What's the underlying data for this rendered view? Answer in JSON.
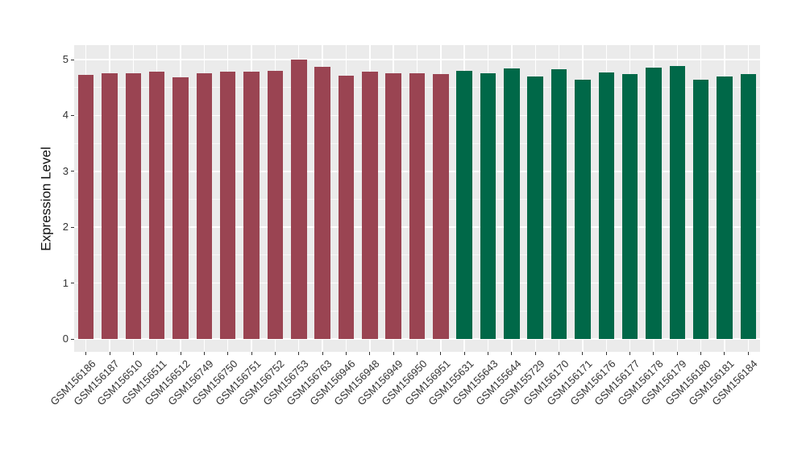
{
  "chart_data": {
    "type": "bar",
    "title": "",
    "xlabel": "",
    "ylabel": "Expression Level",
    "ylim": [
      -0.25,
      5.26
    ],
    "yticks": [
      0,
      1,
      2,
      3,
      4,
      5
    ],
    "minor_yticks": [
      0.5,
      1.5,
      2.5,
      3.5,
      4.5
    ],
    "grid": true,
    "legend_position": "none",
    "plot_bg_color": "#EBEBEB",
    "grid_color": "#FFFFFF",
    "tick_color": "#333333",
    "group_colors": {
      "group1": "#9A4452",
      "group2": "#006848"
    },
    "bars": [
      {
        "label": "GSM156186",
        "value": 4.72,
        "group": "group1"
      },
      {
        "label": "GSM156187",
        "value": 4.75,
        "group": "group1"
      },
      {
        "label": "GSM156510",
        "value": 4.75,
        "group": "group1"
      },
      {
        "label": "GSM156511",
        "value": 4.78,
        "group": "group1"
      },
      {
        "label": "GSM156512",
        "value": 4.69,
        "group": "group1"
      },
      {
        "label": "GSM156749",
        "value": 4.76,
        "group": "group1"
      },
      {
        "label": "GSM156750",
        "value": 4.79,
        "group": "group1"
      },
      {
        "label": "GSM156751",
        "value": 4.79,
        "group": "group1"
      },
      {
        "label": "GSM156752",
        "value": 4.8,
        "group": "group1"
      },
      {
        "label": "GSM156753",
        "value": 5.0,
        "group": "group1"
      },
      {
        "label": "GSM156763",
        "value": 4.87,
        "group": "group1"
      },
      {
        "label": "GSM156946",
        "value": 4.71,
        "group": "group1"
      },
      {
        "label": "GSM156948",
        "value": 4.78,
        "group": "group1"
      },
      {
        "label": "GSM156949",
        "value": 4.75,
        "group": "group1"
      },
      {
        "label": "GSM156950",
        "value": 4.76,
        "group": "group1"
      },
      {
        "label": "GSM156951",
        "value": 4.74,
        "group": "group1"
      },
      {
        "label": "GSM155631",
        "value": 4.8,
        "group": "group2"
      },
      {
        "label": "GSM155643",
        "value": 4.75,
        "group": "group2"
      },
      {
        "label": "GSM155644",
        "value": 4.84,
        "group": "group2"
      },
      {
        "label": "GSM155729",
        "value": 4.7,
        "group": "group2"
      },
      {
        "label": "GSM156170",
        "value": 4.82,
        "group": "group2"
      },
      {
        "label": "GSM156171",
        "value": 4.64,
        "group": "group2"
      },
      {
        "label": "GSM156176",
        "value": 4.77,
        "group": "group2"
      },
      {
        "label": "GSM156177",
        "value": 4.74,
        "group": "group2"
      },
      {
        "label": "GSM156178",
        "value": 4.85,
        "group": "group2"
      },
      {
        "label": "GSM156179",
        "value": 4.89,
        "group": "group2"
      },
      {
        "label": "GSM156180",
        "value": 4.64,
        "group": "group2"
      },
      {
        "label": "GSM156181",
        "value": 4.7,
        "group": "group2"
      },
      {
        "label": "GSM156184",
        "value": 4.74,
        "group": "group2"
      }
    ]
  }
}
